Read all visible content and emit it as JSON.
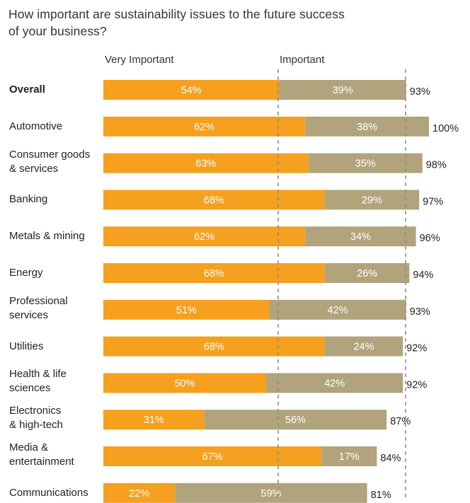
{
  "title_line1": "How important are sustainability issues to the future success",
  "title_line2": "of your business?",
  "chart_data": {
    "type": "bar",
    "stacked": true,
    "orientation": "horizontal",
    "series": [
      {
        "name": "Very Important",
        "color": "#f5a01f",
        "values": [
          54,
          62,
          63,
          68,
          62,
          68,
          51,
          68,
          50,
          31,
          67,
          22
        ]
      },
      {
        "name": "Important",
        "color": "#b1a37b",
        "values": [
          39,
          38,
          35,
          29,
          34,
          26,
          42,
          24,
          42,
          56,
          17,
          59
        ]
      }
    ],
    "totals": [
      93,
      100,
      98,
      97,
      96,
      94,
      93,
      92,
      92,
      87,
      84,
      81
    ],
    "categories": [
      {
        "lines": [
          "Overall"
        ],
        "bold": true
      },
      {
        "lines": [
          "Automotive"
        ]
      },
      {
        "lines": [
          "Consumer goods",
          "& services"
        ]
      },
      {
        "lines": [
          "Banking"
        ]
      },
      {
        "lines": [
          "Metals & mining"
        ]
      },
      {
        "lines": [
          "Energy"
        ]
      },
      {
        "lines": [
          "Professional",
          "services"
        ]
      },
      {
        "lines": [
          "Utilities"
        ]
      },
      {
        "lines": [
          "Health & life",
          "sciences"
        ]
      },
      {
        "lines": [
          "Electronics",
          "& high-tech"
        ]
      },
      {
        "lines": [
          "Media &",
          "entertainment"
        ]
      },
      {
        "lines": [
          "Communications"
        ]
      }
    ],
    "value_suffix": "%",
    "xlim": [
      0,
      100
    ],
    "reference_lines": [
      "dashed"
    ]
  }
}
